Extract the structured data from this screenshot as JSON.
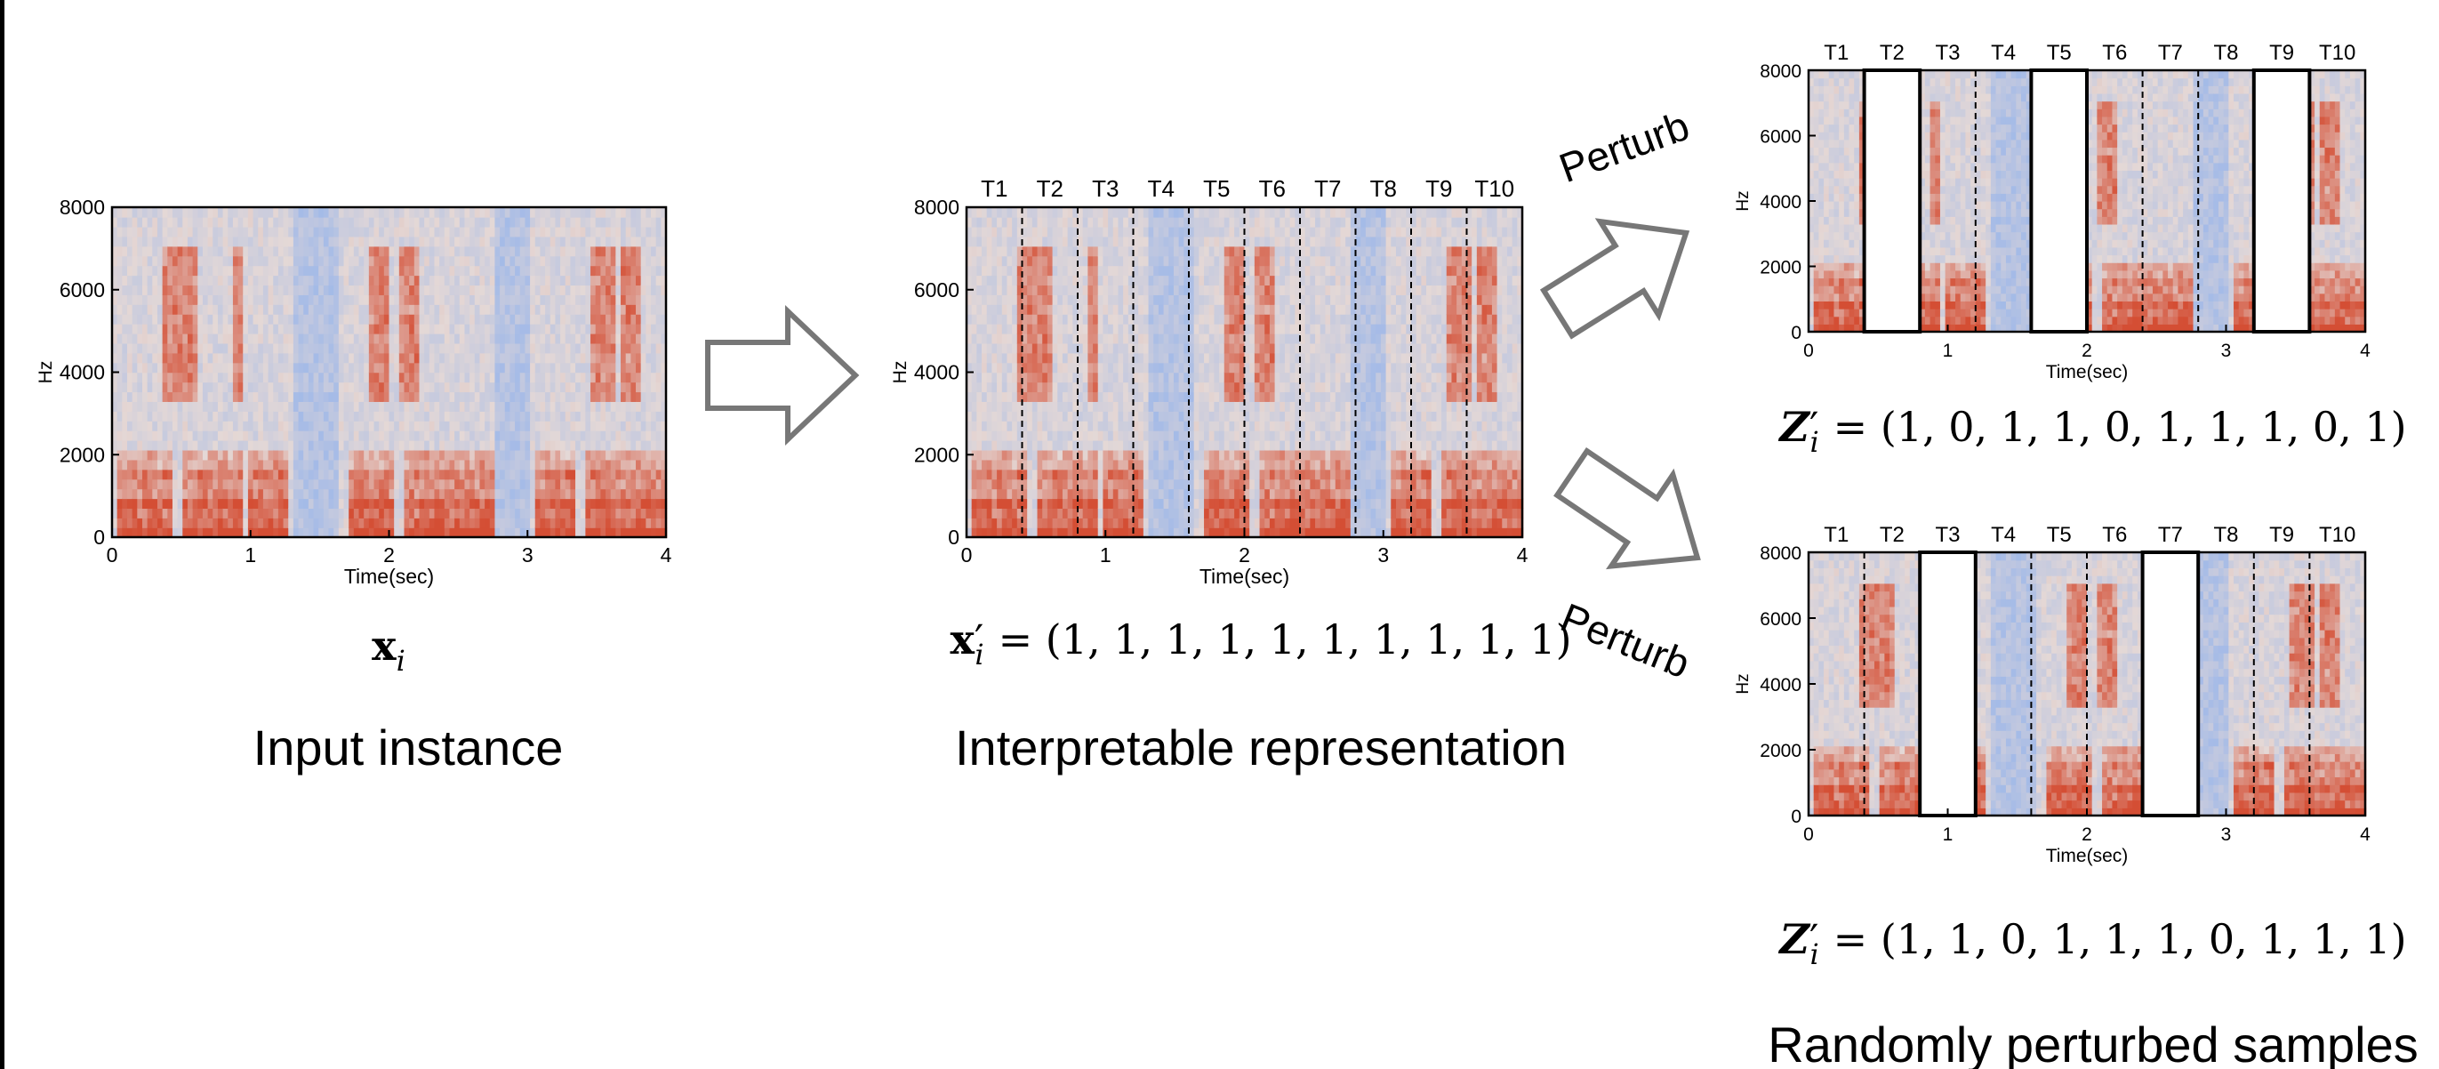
{
  "panels": [
    {
      "y_label": "Hz",
      "x_label": "Time(sec)",
      "yticks": [
        "0",
        "2000",
        "4000",
        "6000",
        "8000"
      ],
      "xticks": [
        "0",
        "1",
        "2",
        "3",
        "4"
      ]
    },
    {
      "y_label": "Hz",
      "x_label": "Time(sec)",
      "yticks": [
        "0",
        "2000",
        "4000",
        "6000",
        "8000"
      ],
      "xticks": [
        "0",
        "1",
        "2",
        "3",
        "4"
      ],
      "segments": [
        "T1",
        "T2",
        "T3",
        "T4",
        "T5",
        "T6",
        "T7",
        "T8",
        "T9",
        "T10"
      ]
    },
    {
      "y_label": "Hz",
      "x_label": "Time(sec)",
      "yticks": [
        "0",
        "2000",
        "4000",
        "6000",
        "8000"
      ],
      "xticks": [
        "0",
        "1",
        "2",
        "3",
        "4"
      ],
      "segments": [
        "T1",
        "T2",
        "T3",
        "T4",
        "T5",
        "T6",
        "T7",
        "T8",
        "T9",
        "T10"
      ]
    },
    {
      "y_label": "Hz",
      "x_label": "Time(sec)",
      "yticks": [
        "0",
        "2000",
        "4000",
        "6000",
        "8000"
      ],
      "xticks": [
        "0",
        "1",
        "2",
        "3",
        "4"
      ],
      "segments": [
        "T1",
        "T2",
        "T3",
        "T4",
        "T5",
        "T6",
        "T7",
        "T8",
        "T9",
        "T10"
      ]
    }
  ],
  "input": {
    "symbol": "x",
    "sub": "i",
    "caption": "Input instance"
  },
  "representation": {
    "symbol": "x",
    "prime": "′",
    "sub": "i",
    "vector": "= (1, 1, 1, 1, 1, 1, 1, 1, 1, 1)",
    "caption": "Interpretable representation"
  },
  "samples": [
    {
      "symbol": "Z",
      "prime": "′",
      "sub": "i",
      "vector": "= (1, 0, 1, 1, 0, 1, 1, 1, 0, 1)"
    },
    {
      "symbol": "Z",
      "prime": "′",
      "sub": "i",
      "vector": "= (1, 1, 0, 1, 1, 1, 0, 1, 1, 1)"
    }
  ],
  "samples_caption": "Randomly perturbed samples",
  "perturb": [
    "Perturb",
    "Perturb"
  ]
}
